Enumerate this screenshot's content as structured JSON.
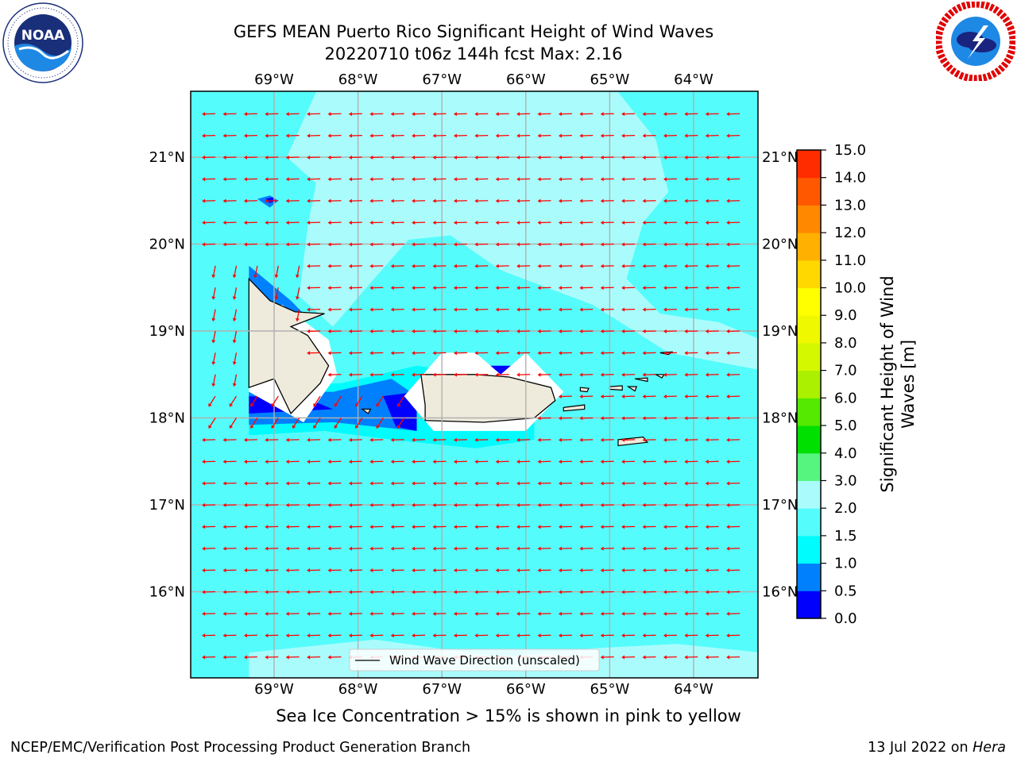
{
  "header": {
    "title_line1": "GEFS MEAN Puerto Rico Significant Height of Wind Waves",
    "title_line2": "20220710 t06z 144h fcst   Max: 2.16"
  },
  "logos": {
    "left": {
      "name": "noaa-logo",
      "text": "NOAA",
      "ring_text": "NATIONAL OCEANIC AND ATMOSPHERIC ADMINISTRATION · U.S. DEPARTMENT OF COMMERCE"
    },
    "right": {
      "name": "nws-logo",
      "ring_text": "NATIONAL WEATHER SERVICE"
    }
  },
  "map": {
    "lon_labels": [
      "69°W",
      "68°W",
      "67°W",
      "66°W",
      "65°W",
      "64°W"
    ],
    "lat_labels": [
      "21°N",
      "20°N",
      "19°N",
      "18°N",
      "17°N",
      "16°N"
    ],
    "legend_label": "Wind Wave Direction (unscaled)",
    "colors": {
      "ocean_light": "#aafcfc",
      "ocean_mid": "#55fcfc",
      "ocean_cyan": "#00fcfc",
      "blue_mid": "#0080fc",
      "blue_dark": "#0000fc",
      "land": "#efebdc",
      "arrow": "#ff0000"
    }
  },
  "colorbar": {
    "label": "Significant Height of Wind Waves [m]",
    "label_line1": "Significant Height of Wind",
    "label_line2": "Waves [m]",
    "ticks": [
      "0.0",
      "0.5",
      "1.0",
      "1.5",
      "2.0",
      "3.0",
      "4.0",
      "5.0",
      "6.0",
      "7.0",
      "8.0",
      "9.0",
      "10.0",
      "11.0",
      "12.0",
      "13.0",
      "14.0",
      "15.0"
    ],
    "colors": [
      "#0000fc",
      "#0080fc",
      "#00fcfc",
      "#55fcfc",
      "#aafcfc",
      "#55f57f",
      "#00e000",
      "#55e800",
      "#aaf000",
      "#d4f800",
      "#f0f800",
      "#ffff00",
      "#ffd800",
      "#ffb000",
      "#ff8800",
      "#ff5800",
      "#ff2c00",
      "#ff0000"
    ]
  },
  "subtitle": "Sea Ice Concentration > 15% is shown in pink to yellow",
  "footer": {
    "left": "NCEP/EMC/Verification Post Processing Product Generation Branch",
    "right_date": "13 Jul 2022 on",
    "right_host": "Hera"
  }
}
